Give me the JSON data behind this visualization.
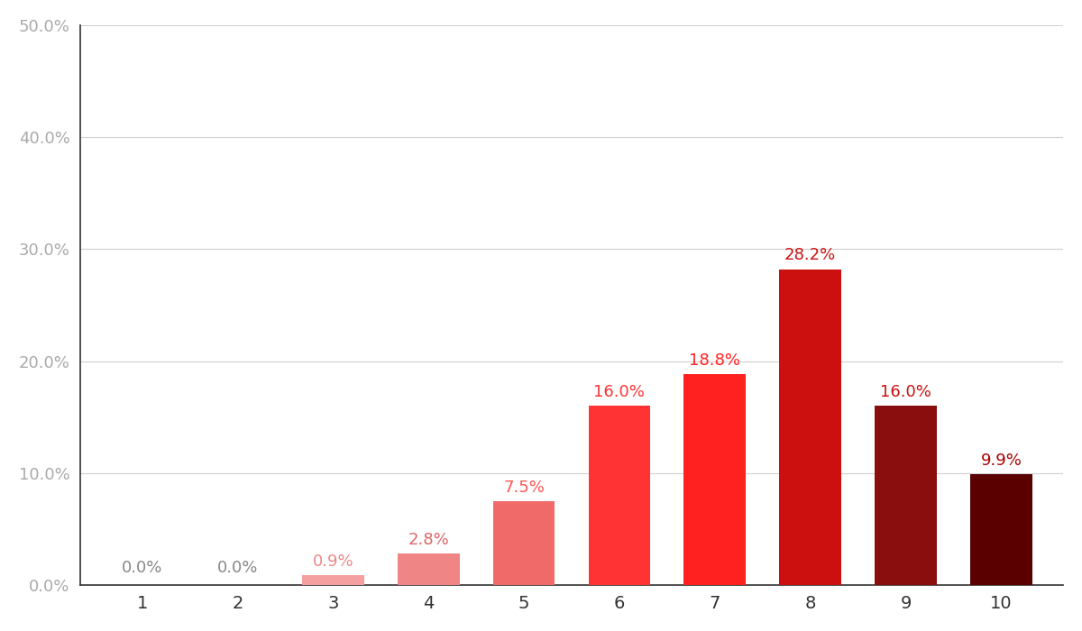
{
  "categories": [
    1,
    2,
    3,
    4,
    5,
    6,
    7,
    8,
    9,
    10
  ],
  "values": [
    0.0,
    0.0,
    0.9,
    2.8,
    7.5,
    16.0,
    18.8,
    28.2,
    16.0,
    9.9
  ],
  "labels": [
    "0.0%",
    "0.0%",
    "0.9%",
    "2.8%",
    "7.5%",
    "16.0%",
    "18.8%",
    "28.2%",
    "16.0%",
    "9.9%"
  ],
  "bar_colors": [
    "#e8e8e8",
    "#e8e8e8",
    "#f4a0a0",
    "#f08585",
    "#f06a6a",
    "#ff3333",
    "#ff2020",
    "#cc1010",
    "#8b0e0e",
    "#5a0000"
  ],
  "label_colors": [
    "#888888",
    "#888888",
    "#ee8888",
    "#dd6666",
    "#ff5555",
    "#ff3333",
    "#ff2222",
    "#cc1111",
    "#cc1111",
    "#aa0000"
  ],
  "background_color": "#ffffff",
  "ylim": [
    0,
    50
  ],
  "yticks": [
    0,
    10,
    20,
    30,
    40,
    50
  ],
  "ytick_labels": [
    "0.0%",
    "10.0%",
    "20.0%",
    "30.0%",
    "40.0%",
    "50.0%"
  ],
  "bar_width": 0.65,
  "figsize": [
    12,
    7
  ]
}
